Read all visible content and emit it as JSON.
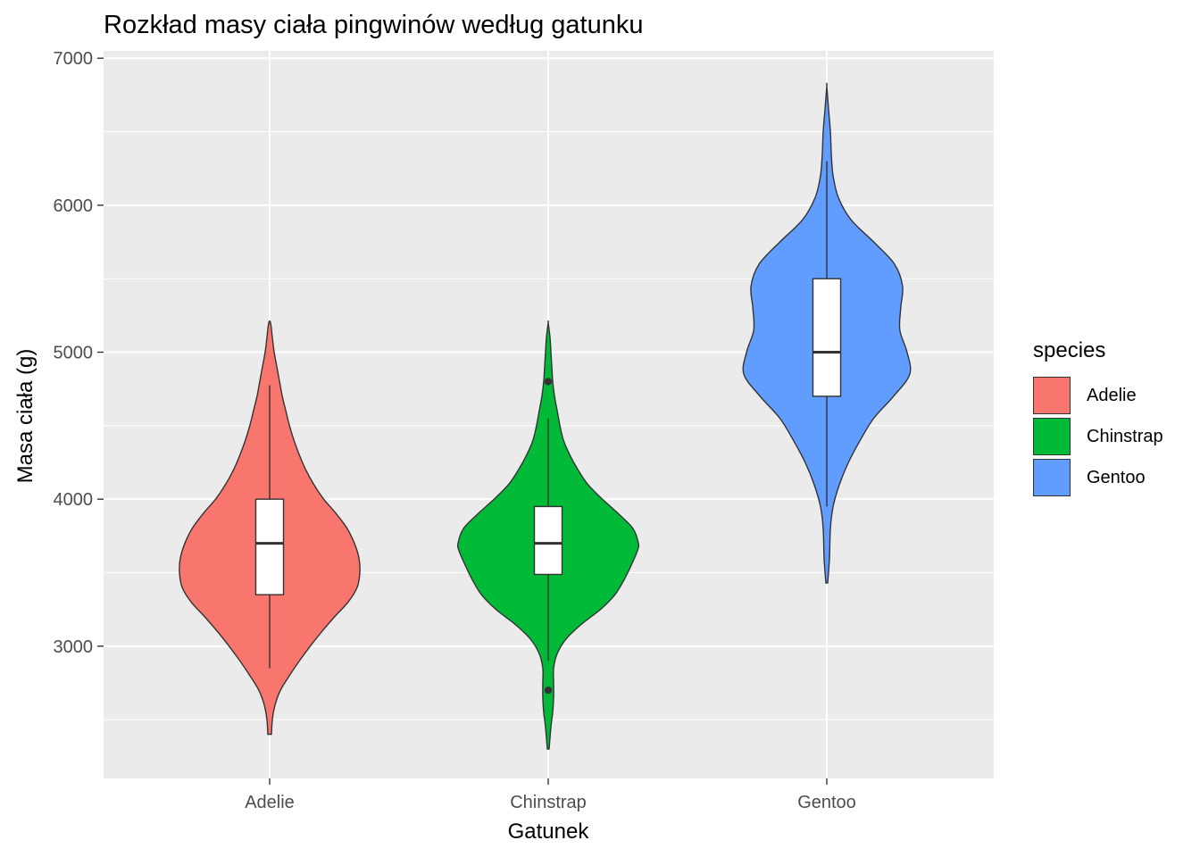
{
  "title": "Rozkład masy ciała pingwinów według gatunku",
  "legend": {
    "title": "species",
    "items": [
      {
        "label": "Adelie",
        "color": "#F8766D"
      },
      {
        "label": "Chinstrap",
        "color": "#00BA38"
      },
      {
        "label": "Gentoo",
        "color": "#619CFF"
      }
    ]
  },
  "chart_data": {
    "type": "violin",
    "title": "Rozkład masy ciała pingwinów według gatunku",
    "xlabel": "Gatunek",
    "ylabel": "Masa ciała (g)",
    "categories": [
      "Adelie",
      "Chinstrap",
      "Gentoo"
    ],
    "ylim": [
      2100,
      7050
    ],
    "yticks": [
      3000,
      4000,
      5000,
      6000,
      7000
    ],
    "colors": {
      "panel": "#EBEBEB",
      "grid": "#FFFFFF"
    },
    "grid": true,
    "legend_position": "right",
    "series": [
      {
        "name": "Adelie",
        "fill": "#F8766D",
        "box": {
          "min": 2850,
          "q1": 3350,
          "median": 3700,
          "q3": 4000,
          "max": 4775
        },
        "outliers": [],
        "density": [
          [
            2400,
            0.02
          ],
          [
            2500,
            0.03
          ],
          [
            2600,
            0.06
          ],
          [
            2700,
            0.12
          ],
          [
            2800,
            0.22
          ],
          [
            2900,
            0.33
          ],
          [
            3000,
            0.45
          ],
          [
            3100,
            0.58
          ],
          [
            3200,
            0.72
          ],
          [
            3300,
            0.87
          ],
          [
            3400,
            0.97
          ],
          [
            3500,
            1.0
          ],
          [
            3600,
            0.99
          ],
          [
            3700,
            0.94
          ],
          [
            3800,
            0.86
          ],
          [
            3900,
            0.74
          ],
          [
            4000,
            0.6
          ],
          [
            4100,
            0.49
          ],
          [
            4200,
            0.4
          ],
          [
            4300,
            0.33
          ],
          [
            4400,
            0.27
          ],
          [
            4500,
            0.22
          ],
          [
            4600,
            0.18
          ],
          [
            4700,
            0.14
          ],
          [
            4800,
            0.11
          ],
          [
            4900,
            0.08
          ],
          [
            5000,
            0.05
          ],
          [
            5100,
            0.03
          ],
          [
            5200,
            0.01
          ]
        ]
      },
      {
        "name": "Chinstrap",
        "fill": "#00BA38",
        "box": {
          "min": 2900,
          "q1": 3488,
          "median": 3700,
          "q3": 3950,
          "max": 4550
        },
        "outliers": [
          2700,
          4800
        ],
        "density": [
          [
            2300,
            0.01
          ],
          [
            2450,
            0.03
          ],
          [
            2550,
            0.05
          ],
          [
            2650,
            0.06
          ],
          [
            2750,
            0.06
          ],
          [
            2850,
            0.06
          ],
          [
            2950,
            0.1
          ],
          [
            3050,
            0.2
          ],
          [
            3150,
            0.37
          ],
          [
            3250,
            0.58
          ],
          [
            3350,
            0.74
          ],
          [
            3450,
            0.84
          ],
          [
            3550,
            0.92
          ],
          [
            3650,
            0.99
          ],
          [
            3700,
            1.0
          ],
          [
            3800,
            0.94
          ],
          [
            3900,
            0.78
          ],
          [
            4000,
            0.6
          ],
          [
            4100,
            0.44
          ],
          [
            4200,
            0.33
          ],
          [
            4300,
            0.24
          ],
          [
            4400,
            0.17
          ],
          [
            4500,
            0.13
          ],
          [
            4600,
            0.1
          ],
          [
            4700,
            0.07
          ],
          [
            4800,
            0.05
          ],
          [
            4900,
            0.04
          ],
          [
            5000,
            0.03
          ],
          [
            5100,
            0.02
          ],
          [
            5200,
            0.0
          ]
        ]
      },
      {
        "name": "Gentoo",
        "fill": "#619CFF",
        "box": {
          "min": 3950,
          "q1": 4700,
          "median": 5000,
          "q3": 5500,
          "max": 6300
        },
        "outliers": [],
        "density": [
          [
            3430,
            0.01
          ],
          [
            3600,
            0.03
          ],
          [
            3800,
            0.04
          ],
          [
            3950,
            0.07
          ],
          [
            4100,
            0.14
          ],
          [
            4250,
            0.24
          ],
          [
            4400,
            0.37
          ],
          [
            4550,
            0.52
          ],
          [
            4700,
            0.74
          ],
          [
            4850,
            0.92
          ],
          [
            5000,
            0.89
          ],
          [
            5150,
            0.81
          ],
          [
            5300,
            0.82
          ],
          [
            5450,
            0.84
          ],
          [
            5600,
            0.75
          ],
          [
            5750,
            0.52
          ],
          [
            5900,
            0.27
          ],
          [
            6050,
            0.13
          ],
          [
            6200,
            0.07
          ],
          [
            6350,
            0.05
          ],
          [
            6500,
            0.04
          ],
          [
            6650,
            0.02
          ],
          [
            6810,
            0.0
          ]
        ]
      }
    ]
  }
}
